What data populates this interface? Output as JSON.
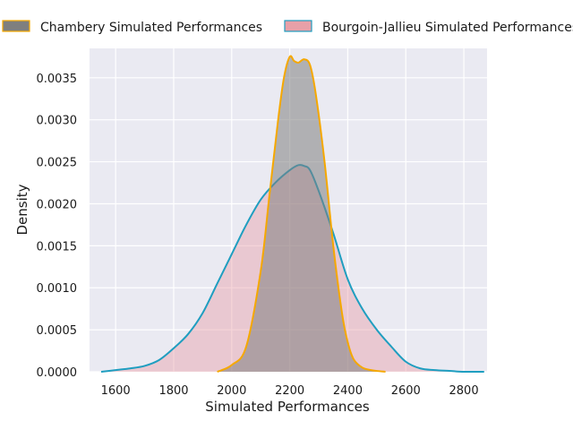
{
  "chart_data": {
    "type": "area",
    "title": "",
    "xlabel": "Simulated Performances",
    "ylabel": "Density",
    "xlim": [
      1510,
      2880
    ],
    "ylim": [
      0,
      0.00385
    ],
    "x_ticks": [
      1600,
      1800,
      2000,
      2200,
      2400,
      2600,
      2800
    ],
    "x_tick_labels": [
      "1600",
      "1800",
      "2000",
      "2200",
      "2400",
      "2600",
      "2800"
    ],
    "y_ticks": [
      0,
      0.0005,
      0.001,
      0.0015,
      0.002,
      0.0025,
      0.003,
      0.0035
    ],
    "y_tick_labels": [
      "0.0000",
      "0.0005",
      "0.0010",
      "0.0015",
      "0.0020",
      "0.0025",
      "0.0030",
      "0.0035"
    ],
    "grid": true,
    "legend_position": "top",
    "series": [
      {
        "name": "Chambery Simulated Performances",
        "fill": "#7f7f7f",
        "stroke": "#f5a800",
        "x": [
          1950,
          2000,
          2050,
          2100,
          2130,
          2160,
          2180,
          2200,
          2215,
          2230,
          2250,
          2270,
          2290,
          2320,
          2350,
          2380,
          2400,
          2420,
          2450,
          2480,
          2500,
          2530
        ],
        "y": [
          0.0,
          8e-05,
          0.0003,
          0.0012,
          0.0021,
          0.003,
          0.0035,
          0.00375,
          0.0037,
          0.00368,
          0.00372,
          0.00365,
          0.0033,
          0.0025,
          0.0015,
          0.0007,
          0.00035,
          0.00015,
          5e-05,
          2e-05,
          1e-05,
          0.0
        ]
      },
      {
        "name": "Bourgoin-Jallieu Simulated Performances",
        "fill": "#e8a0a8",
        "stroke": "#1f9ec0",
        "x": [
          1550,
          1600,
          1650,
          1700,
          1750,
          1800,
          1850,
          1900,
          1950,
          2000,
          2050,
          2100,
          2150,
          2200,
          2230,
          2250,
          2270,
          2300,
          2350,
          2400,
          2450,
          2500,
          2550,
          2600,
          2650,
          2700,
          2750,
          2800,
          2850,
          2870
        ],
        "y": [
          0.0,
          2e-05,
          4e-05,
          7e-05,
          0.00014,
          0.00028,
          0.00045,
          0.0007,
          0.00105,
          0.0014,
          0.00175,
          0.00205,
          0.00225,
          0.0024,
          0.00246,
          0.00245,
          0.0024,
          0.00215,
          0.00165,
          0.0011,
          0.00075,
          0.0005,
          0.0003,
          0.00012,
          4e-05,
          2e-05,
          1e-05,
          0.0,
          0.0,
          0.0
        ]
      }
    ]
  }
}
